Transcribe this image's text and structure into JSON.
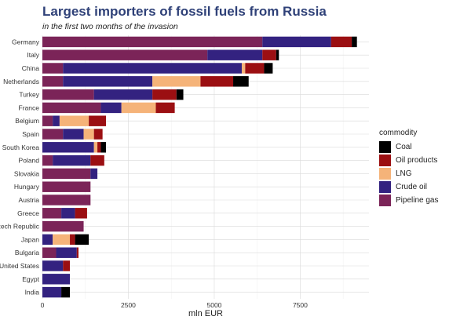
{
  "chart_data": {
    "type": "bar",
    "orientation": "horizontal",
    "stacked": true,
    "title": "Largest importers of fossil fuels from Russia",
    "subtitle": "in the first two months of the invasion",
    "xlabel": "mln EUR",
    "ylabel": "",
    "xlim": [
      0,
      9500
    ],
    "xticks": [
      0,
      2500,
      5000,
      7500
    ],
    "xtick_labels": [
      "0",
      "2500",
      "5000",
      "7500"
    ],
    "grid": true,
    "legend": {
      "title": "commodity",
      "placement": "right"
    },
    "categories": [
      "Germany",
      "Italy",
      "China",
      "Netherlands",
      "Turkey",
      "France",
      "Belgium",
      "Spain",
      "South Korea",
      "Poland",
      "Slovakia",
      "Hungary",
      "Austria",
      "Greece",
      "Czech Republic",
      "Japan",
      "Bulgaria",
      "United States",
      "Egypt",
      "India"
    ],
    "category_labels_shown": [
      "Germany",
      "Italy",
      "China",
      "Netherlands",
      "Turkey",
      "France",
      "Belgium",
      "Spain",
      "South Korea",
      "Poland",
      "Slovakia",
      "Hungary",
      "Austria",
      "Greece",
      "zech Republic",
      "Japan",
      "Bulgaria",
      "United States",
      "Egypt",
      "India"
    ],
    "series": [
      {
        "name": "Pipeline gas",
        "color": "#7b2458",
        "values": [
          6400,
          4800,
          600,
          600,
          1500,
          1700,
          300,
          600,
          0,
          300,
          1400,
          1400,
          1400,
          550,
          1200,
          0,
          400,
          0,
          0,
          0
        ]
      },
      {
        "name": "Crude oil",
        "color": "#332280",
        "values": [
          2000,
          1600,
          5200,
          2600,
          1700,
          600,
          200,
          600,
          1500,
          1100,
          200,
          0,
          0,
          400,
          0,
          300,
          600,
          600,
          800,
          550
        ]
      },
      {
        "name": "LNG",
        "color": "#f5b379",
        "values": [
          0,
          0,
          100,
          1400,
          0,
          1000,
          850,
          300,
          100,
          0,
          0,
          0,
          0,
          0,
          0,
          500,
          0,
          0,
          0,
          0
        ]
      },
      {
        "name": "Oil products",
        "color": "#9b0f12",
        "values": [
          600,
          400,
          550,
          950,
          700,
          550,
          500,
          250,
          100,
          400,
          0,
          0,
          0,
          350,
          0,
          150,
          50,
          200,
          0,
          0
        ]
      },
      {
        "name": "Coal",
        "color": "#000000",
        "values": [
          150,
          80,
          250,
          450,
          200,
          0,
          0,
          0,
          150,
          0,
          0,
          0,
          0,
          0,
          0,
          400,
          0,
          0,
          0,
          250
        ]
      }
    ]
  }
}
